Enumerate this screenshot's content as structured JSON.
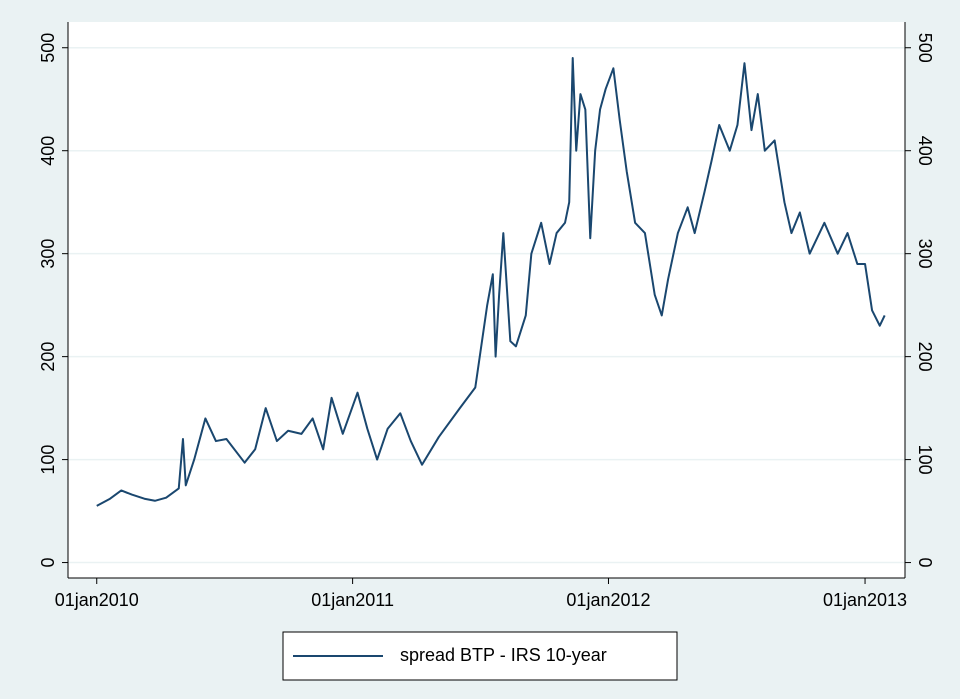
{
  "chart_data": {
    "type": "line",
    "x": [
      "2010-01-01",
      "2010-01-20",
      "2010-02-05",
      "2010-02-20",
      "2010-03-10",
      "2010-03-25",
      "2010-04-10",
      "2010-04-28",
      "2010-05-04",
      "2010-05-08",
      "2010-05-20",
      "2010-06-05",
      "2010-06-20",
      "2010-07-05",
      "2010-07-31",
      "2010-08-15",
      "2010-08-30",
      "2010-09-15",
      "2010-10-01",
      "2010-10-20",
      "2010-11-05",
      "2010-11-20",
      "2010-12-02",
      "2010-12-18",
      "2011-01-08",
      "2011-01-22",
      "2011-02-05",
      "2011-02-20",
      "2011-03-10",
      "2011-03-25",
      "2011-04-10",
      "2011-05-04",
      "2011-06-03",
      "2011-06-25",
      "2011-07-12",
      "2011-07-20",
      "2011-07-24",
      "2011-07-29",
      "2011-08-04",
      "2011-08-14",
      "2011-08-22",
      "2011-09-05",
      "2011-09-13",
      "2011-09-27",
      "2011-10-09",
      "2011-10-19",
      "2011-10-31",
      "2011-11-06",
      "2011-11-11",
      "2011-11-16",
      "2011-11-22",
      "2011-11-29",
      "2011-12-06",
      "2011-12-13",
      "2011-12-20",
      "2011-12-28",
      "2012-01-08",
      "2012-01-17",
      "2012-01-27",
      "2012-02-08",
      "2012-02-22",
      "2012-03-07",
      "2012-03-17",
      "2012-03-26",
      "2012-04-09",
      "2012-04-23",
      "2012-05-03",
      "2012-05-17",
      "2012-05-27",
      "2012-06-07",
      "2012-06-22",
      "2012-07-03",
      "2012-07-13",
      "2012-07-23",
      "2012-08-01",
      "2012-08-11",
      "2012-08-25",
      "2012-09-08",
      "2012-09-18",
      "2012-09-30",
      "2012-10-14",
      "2012-11-04",
      "2012-11-23",
      "2012-12-07",
      "2012-12-21",
      "2013-01-01",
      "2013-01-11",
      "2013-01-22",
      "2013-01-29"
    ],
    "series": [
      {
        "name": "spread BTP - IRS 10-year",
        "color": "#1a476f",
        "values": [
          55,
          62,
          70,
          66,
          62,
          60,
          63,
          72,
          120,
          75,
          100,
          140,
          118,
          120,
          97,
          110,
          150,
          118,
          128,
          125,
          140,
          110,
          160,
          125,
          165,
          130,
          100,
          130,
          145,
          118,
          95,
          122,
          150,
          170,
          250,
          280,
          200,
          260,
          320,
          215,
          210,
          240,
          300,
          330,
          290,
          320,
          330,
          350,
          490,
          400,
          455,
          440,
          315,
          400,
          440,
          460,
          480,
          430,
          380,
          330,
          320,
          260,
          240,
          275,
          320,
          345,
          320,
          360,
          390,
          425,
          400,
          425,
          485,
          420,
          455,
          400,
          410,
          350,
          320,
          340,
          300,
          330,
          300,
          320,
          290,
          290,
          245,
          230,
          240
        ]
      }
    ],
    "xlim": [
      "2009-11-21",
      "2013-02-27"
    ],
    "xticks": [
      {
        "value": "2010-01-01",
        "label": "01jan2010"
      },
      {
        "value": "2011-01-01",
        "label": "01jan2011"
      },
      {
        "value": "2012-01-01",
        "label": "01jan2012"
      },
      {
        "value": "2013-01-01",
        "label": "01jan2013"
      }
    ],
    "ylim": [
      -15,
      525
    ],
    "yticks": [
      0,
      100,
      200,
      300,
      400,
      500
    ],
    "grid": true
  }
}
